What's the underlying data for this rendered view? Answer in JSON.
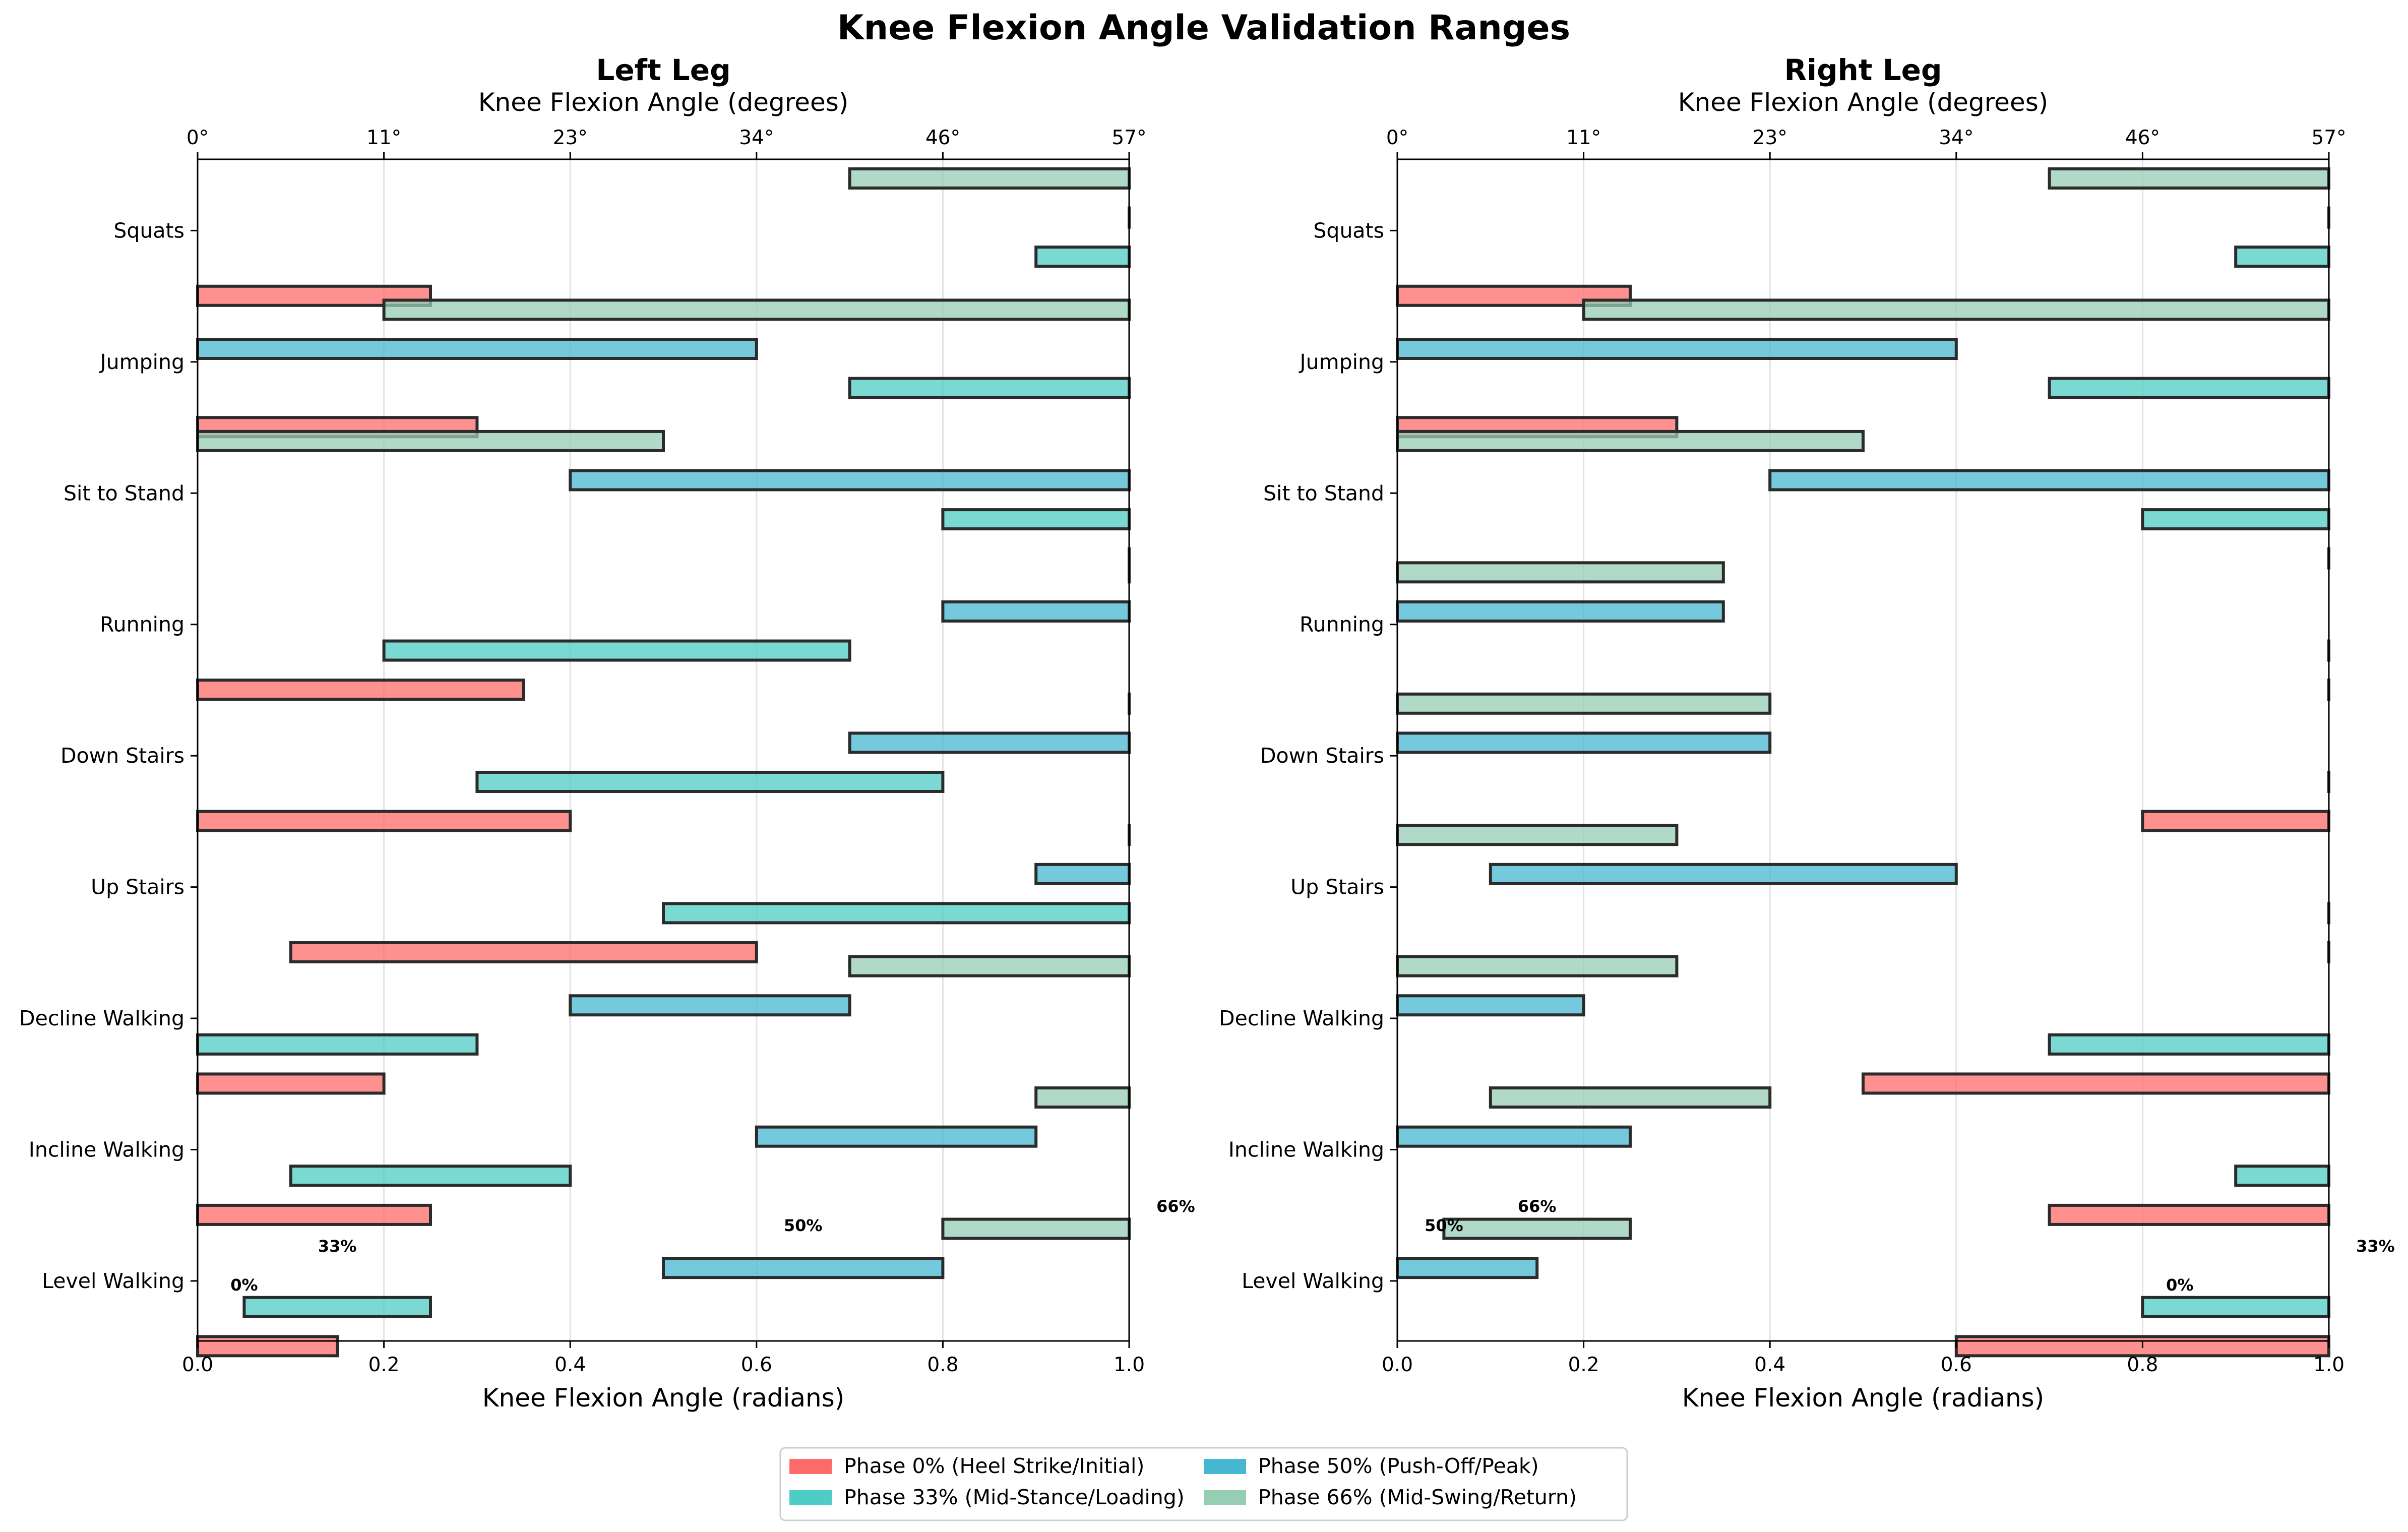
{
  "figure_title": "Knee Flexion Angle Validation Ranges",
  "chart_data": [
    {
      "type": "bar",
      "orientation": "horizontal-range",
      "title": "Left Leg",
      "xlabel": "Knee Flexion Angle (radians)",
      "x2label": "Knee Flexion Angle (degrees)",
      "xlim": [
        0,
        1
      ],
      "xticks": [
        "0.0",
        "0.2",
        "0.4",
        "0.6",
        "0.8",
        "1.0"
      ],
      "x2ticks": [
        "0°",
        "11°",
        "23°",
        "34°",
        "46°",
        "57°"
      ],
      "grid": true,
      "categories": [
        "Level Walking",
        "Incline Walking",
        "Decline Walking",
        "Up Stairs",
        "Down Stairs",
        "Running",
        "Sit to Stand",
        "Jumping",
        "Squats"
      ],
      "series": [
        {
          "name": "Phase 0% (Heel Strike/Initial)",
          "color": "#ff6b6b",
          "ranges": [
            [
              0.0,
              0.15
            ],
            [
              0.0,
              0.25
            ],
            [
              0.0,
              0.2
            ],
            [
              0.1,
              0.6
            ],
            [
              0.0,
              0.4
            ],
            [
              0.0,
              0.35
            ],
            [
              1.0,
              1.0
            ],
            [
              0.0,
              0.3
            ],
            [
              0.0,
              0.25
            ]
          ]
        },
        {
          "name": "Phase 33% (Mid-Stance/Loading)",
          "color": "#4ecdc4",
          "ranges": [
            [
              0.05,
              0.25
            ],
            [
              0.1,
              0.4
            ],
            [
              0.0,
              0.3
            ],
            [
              0.5,
              1.0
            ],
            [
              0.3,
              0.8
            ],
            [
              0.2,
              0.7
            ],
            [
              0.8,
              1.0
            ],
            [
              0.7,
              1.0
            ],
            [
              0.9,
              1.0
            ]
          ]
        },
        {
          "name": "Phase 50% (Push-Off/Peak)",
          "color": "#45b7d1",
          "ranges": [
            [
              0.5,
              0.8
            ],
            [
              0.6,
              0.9
            ],
            [
              0.4,
              0.7
            ],
            [
              0.9,
              1.0
            ],
            [
              0.7,
              1.0
            ],
            [
              0.8,
              1.0
            ],
            [
              0.4,
              1.0
            ],
            [
              0.0,
              0.6
            ],
            [
              1.0,
              1.0
            ]
          ]
        },
        {
          "name": "Phase 66% (Mid-Swing/Return)",
          "color": "#96ceb4",
          "ranges": [
            [
              0.8,
              1.0
            ],
            [
              0.9,
              1.0
            ],
            [
              0.7,
              1.0
            ],
            [
              1.0,
              1.0
            ],
            [
              1.0,
              1.0
            ],
            [
              1.0,
              1.0
            ],
            [
              0.0,
              0.5
            ],
            [
              0.2,
              1.0
            ],
            [
              0.7,
              1.0
            ]
          ]
        }
      ],
      "phase_annotations": [
        {
          "text": "0%",
          "x": 0.05
        },
        {
          "text": "33%",
          "x": 0.15
        },
        {
          "text": "50%",
          "x": 0.65
        },
        {
          "text": "66%",
          "x": 1.05
        }
      ]
    },
    {
      "type": "bar",
      "orientation": "horizontal-range",
      "title": "Right Leg",
      "xlabel": "Knee Flexion Angle (radians)",
      "x2label": "Knee Flexion Angle (degrees)",
      "xlim": [
        0,
        1
      ],
      "xticks": [
        "0.0",
        "0.2",
        "0.4",
        "0.6",
        "0.8",
        "1.0"
      ],
      "x2ticks": [
        "0°",
        "11°",
        "23°",
        "34°",
        "46°",
        "57°"
      ],
      "grid": true,
      "categories": [
        "Level Walking",
        "Incline Walking",
        "Decline Walking",
        "Up Stairs",
        "Down Stairs",
        "Running",
        "Sit to Stand",
        "Jumping",
        "Squats"
      ],
      "series": [
        {
          "name": "Phase 0% (Heel Strike/Initial)",
          "color": "#ff6b6b",
          "ranges": [
            [
              0.6,
              1.0
            ],
            [
              0.7,
              1.0
            ],
            [
              0.5,
              1.0
            ],
            [
              1.0,
              1.0
            ],
            [
              0.8,
              1.0
            ],
            [
              1.0,
              1.0
            ],
            [
              1.0,
              1.0
            ],
            [
              0.0,
              0.3
            ],
            [
              0.0,
              0.25
            ]
          ]
        },
        {
          "name": "Phase 33% (Mid-Stance/Loading)",
          "color": "#4ecdc4",
          "ranges": [
            [
              0.8,
              1.0
            ],
            [
              0.9,
              1.0
            ],
            [
              0.7,
              1.0
            ],
            [
              1.0,
              1.0
            ],
            [
              1.0,
              1.0
            ],
            [
              1.0,
              1.0
            ],
            [
              0.8,
              1.0
            ],
            [
              0.7,
              1.0
            ],
            [
              0.9,
              1.0
            ]
          ]
        },
        {
          "name": "Phase 50% (Push-Off/Peak)",
          "color": "#45b7d1",
          "ranges": [
            [
              0.0,
              0.15
            ],
            [
              0.0,
              0.25
            ],
            [
              0.0,
              0.2
            ],
            [
              0.1,
              0.6
            ],
            [
              0.0,
              0.4
            ],
            [
              0.0,
              0.35
            ],
            [
              0.4,
              1.0
            ],
            [
              0.0,
              0.6
            ],
            [
              1.0,
              1.0
            ]
          ]
        },
        {
          "name": "Phase 66% (Mid-Swing/Return)",
          "color": "#96ceb4",
          "ranges": [
            [
              0.05,
              0.25
            ],
            [
              0.1,
              0.4
            ],
            [
              0.0,
              0.3
            ],
            [
              0.0,
              0.3
            ],
            [
              0.0,
              0.4
            ],
            [
              0.0,
              0.35
            ],
            [
              0.0,
              0.5
            ],
            [
              0.2,
              1.0
            ],
            [
              0.7,
              1.0
            ]
          ]
        }
      ],
      "phase_annotations": [
        {
          "text": "0%",
          "x": 0.84
        },
        {
          "text": "33%",
          "x": 1.05
        },
        {
          "text": "50%",
          "x": 0.05
        },
        {
          "text": "66%",
          "x": 0.15
        }
      ]
    }
  ],
  "legend": {
    "placement": "bottom-center",
    "items": [
      {
        "label": "Phase 0% (Heel Strike/Initial)",
        "color": "#ff6b6b"
      },
      {
        "label": "Phase 33% (Mid-Stance/Loading)",
        "color": "#4ecdc4"
      },
      {
        "label": "Phase 50% (Push-Off/Peak)",
        "color": "#45b7d1"
      },
      {
        "label": "Phase 66% (Mid-Swing/Return)",
        "color": "#96ceb4"
      }
    ]
  }
}
